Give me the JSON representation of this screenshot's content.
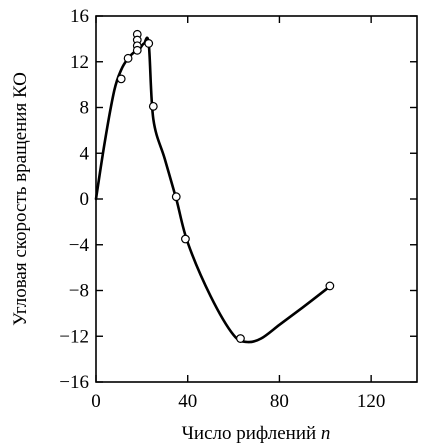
{
  "chart_data": {
    "type": "line",
    "xlabel_text": "Число рифлений ",
    "xlabel_var": "n",
    "ylabel": "Угловая скорость вращения КО",
    "xlim": [
      0,
      140
    ],
    "ylim": [
      -16,
      16
    ],
    "x_ticks": [
      0,
      40,
      80,
      120
    ],
    "y_ticks": [
      -16,
      -12,
      -8,
      -4,
      0,
      4,
      8,
      12,
      16
    ],
    "x_tick_labels": [
      "0",
      "40",
      "80",
      "120"
    ],
    "y_tick_labels": [
      "−16",
      "−12",
      "−8",
      "−4",
      "0",
      "4",
      "8",
      "12",
      "16"
    ],
    "grid": false,
    "legend": "none",
    "curve": {
      "x": [
        0,
        4,
        8,
        11,
        14,
        17,
        18,
        19,
        20,
        21,
        23,
        25,
        30,
        35,
        40,
        50,
        60,
        66,
        72,
        80,
        90,
        101
      ],
      "y": [
        0,
        5.2,
        9.5,
        11.3,
        12.3,
        12.9,
        13.0,
        13.1,
        13.4,
        13.6,
        13.6,
        7.0,
        3.5,
        0.0,
        -3.8,
        -8.5,
        -11.9,
        -12.5,
        -12.2,
        -11.0,
        -9.5,
        -7.8
      ]
    },
    "points": {
      "x": [
        11,
        14,
        18,
        18,
        18,
        18,
        23,
        25,
        35,
        39,
        63,
        102
      ],
      "y": [
        10.5,
        12.3,
        14.4,
        13.9,
        13.4,
        13.0,
        13.6,
        8.1,
        0.2,
        -3.5,
        -12.2,
        -7.6
      ]
    }
  }
}
